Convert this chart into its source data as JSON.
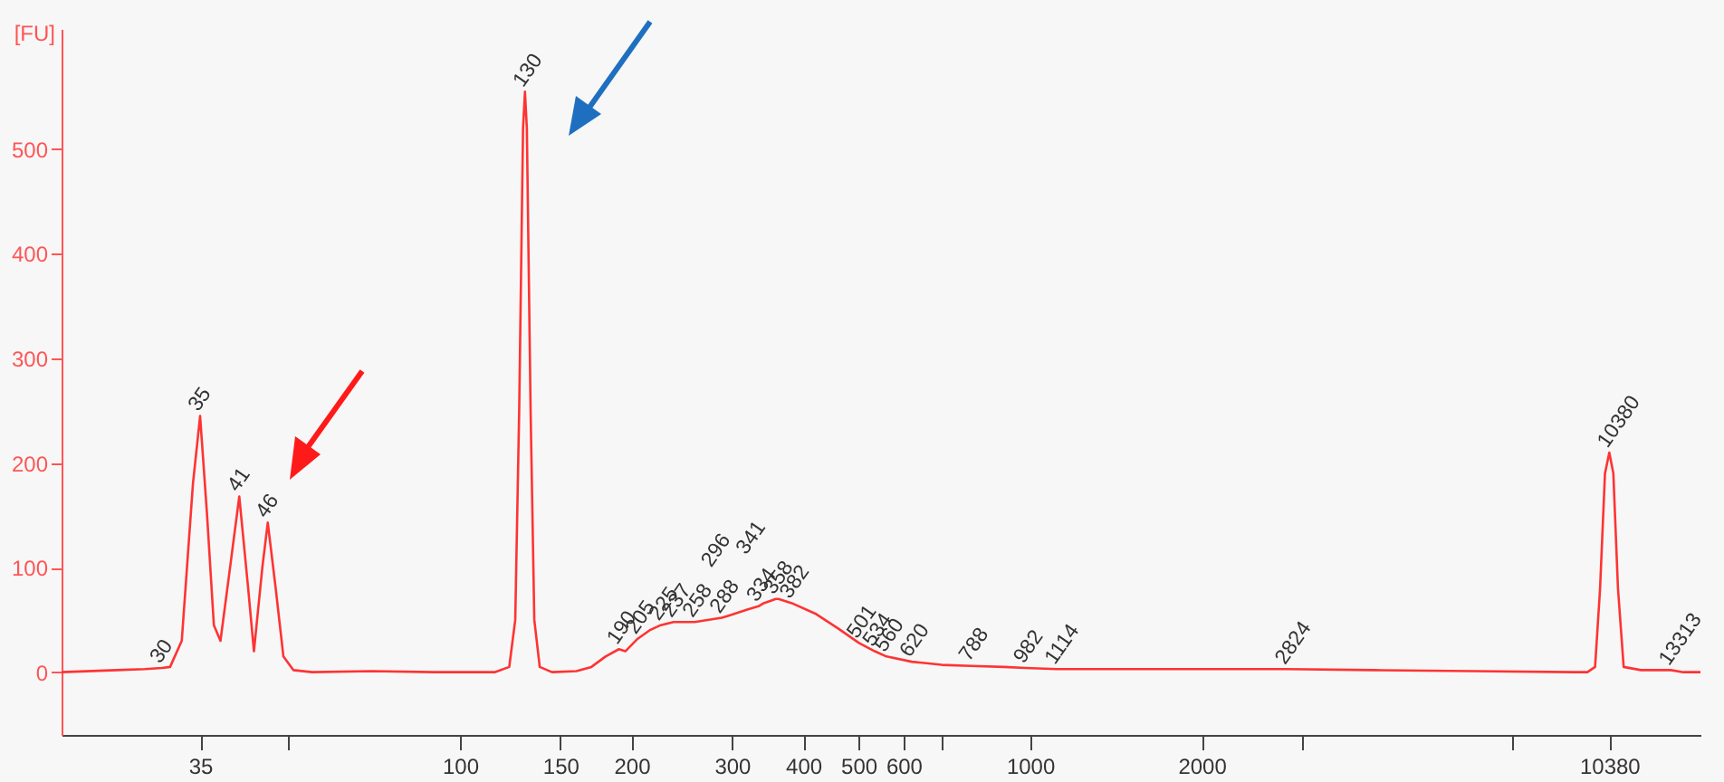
{
  "chart_data": {
    "type": "line",
    "ylabel": "[FU]",
    "xlim": [
      20,
      15000
    ],
    "ylim": [
      -60,
      615
    ],
    "log": "x",
    "xticks": [
      35,
      {
        "value": 50,
        "label": null
      },
      100,
      150,
      200,
      300,
      400,
      500,
      600,
      {
        "value": 700,
        "label": null
      },
      1000,
      2000,
      {
        "value": 3000,
        "label": null
      },
      {
        "value": 7000,
        "label": null
      },
      10380
    ],
    "yticks": [
      0,
      100,
      200,
      300,
      400,
      500
    ],
    "grid": false,
    "legend": false,
    "marker": "none",
    "line_style": "solid",
    "series": [
      {
        "color": "#ff3333",
        "x": [
          20,
          25,
          28,
          30,
          31,
          32.5,
          34,
          35,
          36,
          37,
          38,
          39.5,
          41,
          42.5,
          43.5,
          45,
          46,
          47.5,
          49,
          51,
          55,
          70,
          90,
          115,
          122,
          125,
          127,
          129,
          130,
          131,
          133,
          135,
          138,
          145,
          160,
          170,
          180,
          190,
          195,
          205,
          215,
          225,
          237,
          258,
          288,
          296,
          320,
          334,
          341,
          350,
          358,
          362,
          382,
          420,
          460,
          501,
          534,
          560,
          620,
          700,
          788,
          900,
          982,
          1114,
          1500,
          2000,
          2824,
          4000,
          6000,
          9000,
          9500,
          9800,
          10000,
          10200,
          10380,
          10550,
          10750,
          11000,
          11800,
          13313,
          14000,
          15000
        ],
        "values": [
          0,
          2,
          3,
          4,
          5,
          30,
          180,
          245,
          150,
          45,
          30,
          100,
          168,
          80,
          20,
          100,
          143,
          80,
          15,
          2,
          0,
          1,
          0,
          0,
          5,
          50,
          250,
          520,
          555,
          520,
          250,
          50,
          5,
          0,
          1,
          5,
          15,
          22,
          20,
          32,
          40,
          45,
          48,
          48,
          52,
          54,
          60,
          63,
          66,
          68,
          70,
          70,
          66,
          56,
          42,
          28,
          20,
          15,
          10,
          7,
          6,
          5,
          4,
          3,
          3,
          3,
          3,
          2,
          1,
          0,
          0,
          5,
          80,
          190,
          210,
          190,
          80,
          5,
          2,
          2,
          0,
          0
        ]
      }
    ],
    "annotations": [
      {
        "text": "30",
        "x": 30,
        "y": 4
      },
      {
        "text": "35",
        "x": 35,
        "y": 245
      },
      {
        "text": "41",
        "x": 41,
        "y": 168
      },
      {
        "text": "46",
        "x": 46,
        "y": 143
      },
      {
        "text": "130",
        "x": 130,
        "y": 555
      },
      {
        "text": "190",
        "x": 190,
        "y": 22
      },
      {
        "text": "205",
        "x": 205,
        "y": 32
      },
      {
        "text": "225",
        "x": 225,
        "y": 45
      },
      {
        "text": "237",
        "x": 237,
        "y": 48
      },
      {
        "text": "258",
        "x": 258,
        "y": 48
      },
      {
        "text": "288",
        "x": 288,
        "y": 52
      },
      {
        "text": "296",
        "x": 296,
        "y": 54
      },
      {
        "text": "334",
        "x": 334,
        "y": 63
      },
      {
        "text": "341",
        "x": 341,
        "y": 66
      },
      {
        "text": "358",
        "x": 358,
        "y": 70
      },
      {
        "text": "382",
        "x": 382,
        "y": 66
      },
      {
        "text": "501",
        "x": 501,
        "y": 28
      },
      {
        "text": "534",
        "x": 534,
        "y": 20
      },
      {
        "text": "560",
        "x": 560,
        "y": 15
      },
      {
        "text": "620",
        "x": 620,
        "y": 10
      },
      {
        "text": "788",
        "x": 788,
        "y": 6
      },
      {
        "text": "982",
        "x": 982,
        "y": 4
      },
      {
        "text": "1114",
        "x": 1114,
        "y": 3
      },
      {
        "text": "2824",
        "x": 2824,
        "y": 3
      },
      {
        "text": "10380",
        "x": 10380,
        "y": 210
      },
      {
        "text": "13313",
        "x": 13313,
        "y": 2
      }
    ]
  }
}
